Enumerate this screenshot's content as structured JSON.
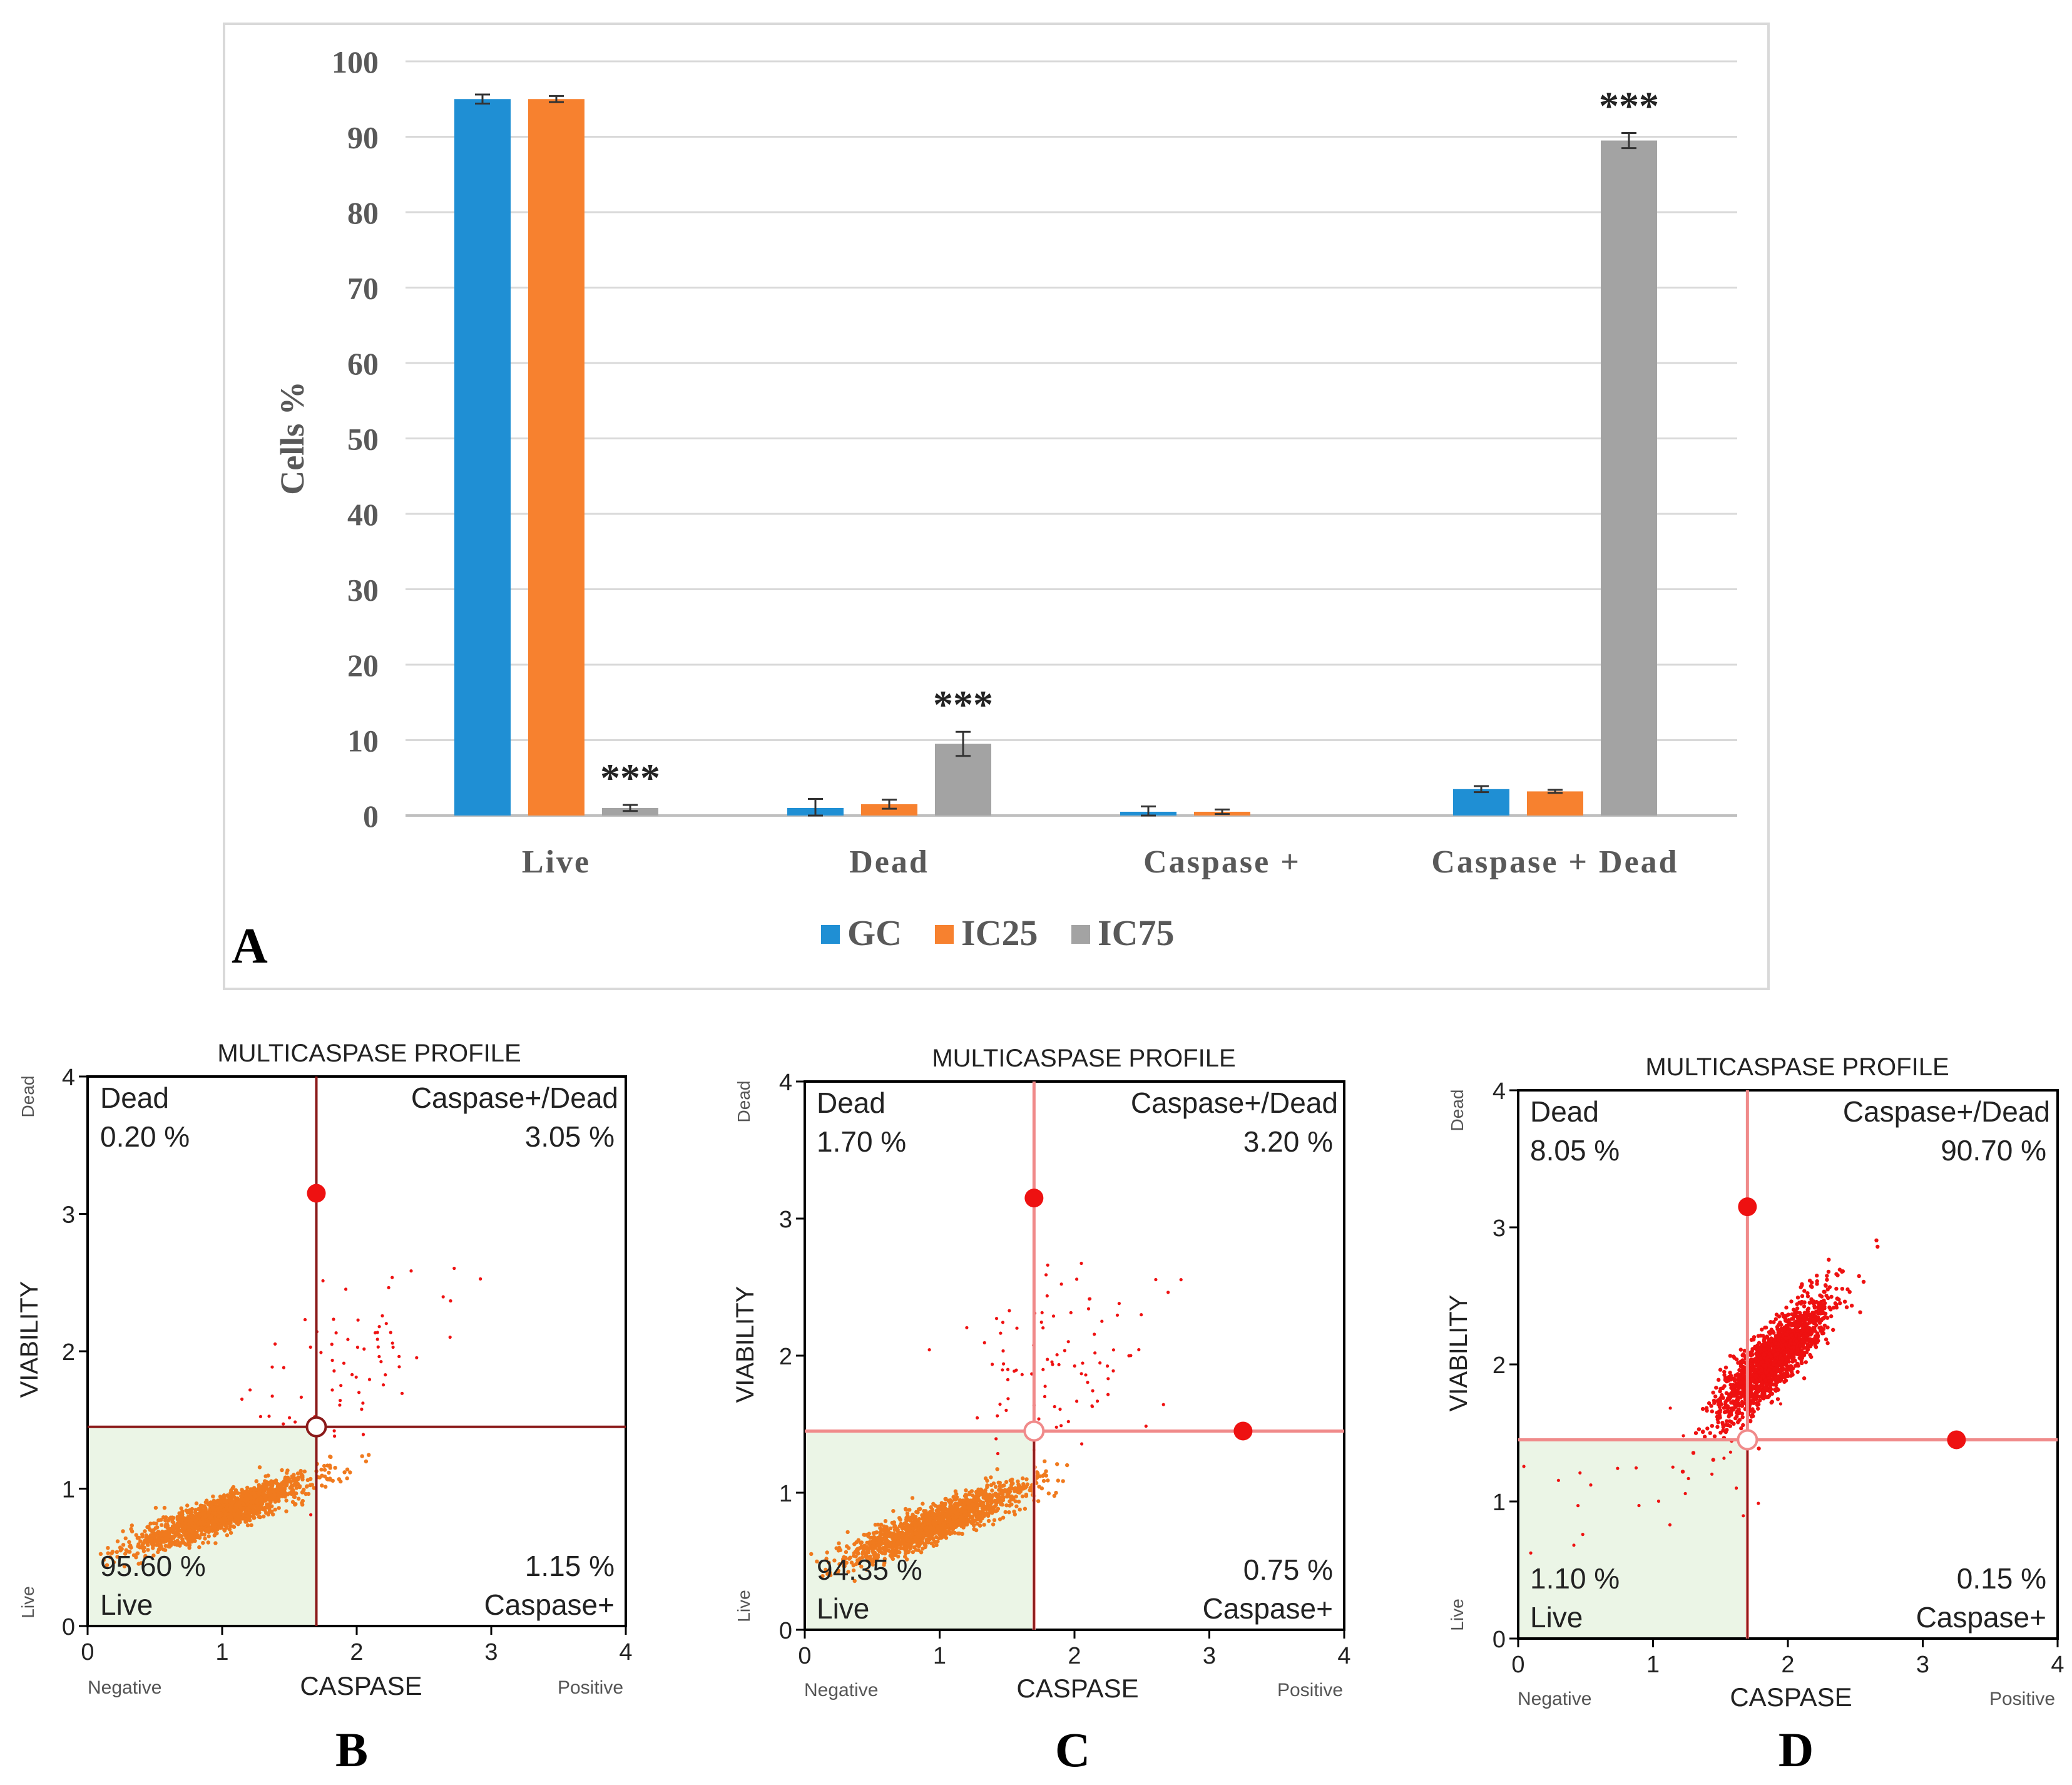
{
  "colors": {
    "gc": "#1f8fd4",
    "ic25": "#f7812f",
    "ic75": "#a3a3a3",
    "dot_orange": "#f07a1e",
    "dot_red": "#ee1111",
    "line_dark": "#8b1a1a",
    "line_pink": "#f08a8a",
    "live_fill": "#ebf5e6"
  },
  "panel_letters": {
    "a": "A",
    "b": "B",
    "c": "C",
    "d": "D"
  },
  "chart_data": [
    {
      "type": "bar",
      "panel": "A",
      "title": "",
      "xlabel": "",
      "ylabel": "Cells %",
      "ylim": [
        0,
        100
      ],
      "yticks": [
        "0",
        "10",
        "20",
        "30",
        "40",
        "50",
        "60",
        "70",
        "80",
        "90",
        "100"
      ],
      "categories": [
        "Live",
        "Dead",
        "Caspase +",
        "Caspase + Dead"
      ],
      "series": [
        {
          "name": "GC",
          "values": [
            95,
            1,
            0.5,
            3.5
          ],
          "errors": [
            0.6,
            1.2,
            0.7,
            0.4
          ]
        },
        {
          "name": "IC25",
          "values": [
            95,
            1.5,
            0.5,
            3.2
          ],
          "errors": [
            0.4,
            0.6,
            0.3,
            0.2
          ]
        },
        {
          "name": "IC75",
          "values": [
            1,
            9.5,
            0,
            89.5
          ],
          "errors": [
            0.4,
            1.6,
            0,
            1.0
          ]
        }
      ],
      "significance": [
        "***",
        "***",
        "",
        "***"
      ],
      "legend": [
        "GC",
        "IC25",
        "IC75"
      ],
      "legend_position": "bottom",
      "grid": true
    },
    {
      "type": "scatter",
      "panel": "B",
      "title": "MULTICASPASE PROFILE",
      "xlabel": "CASPASE",
      "ylabel": "VIABILITY",
      "x_end_labels": [
        "Negative",
        "Positive"
      ],
      "y_end_labels": [
        "Live",
        "Dead"
      ],
      "xlim": [
        0,
        4
      ],
      "ylim": [
        0,
        4
      ],
      "xticks": [
        "0",
        "1",
        "2",
        "3",
        "4"
      ],
      "yticks": [
        "0",
        "1",
        "2",
        "3",
        "4"
      ],
      "gate": [
        1.7,
        1.45
      ],
      "gate_color": "dark",
      "handles": [
        [
          1.7,
          3.15
        ]
      ],
      "quadrants": {
        "dead": {
          "name": "Dead",
          "pct": "0.20 %"
        },
        "caspase_dead": {
          "name": "Caspase+/Dead",
          "pct": "3.05 %"
        },
        "live": {
          "name": "Live",
          "pct": "95.60 %"
        },
        "caspase": {
          "name": "Caspase+",
          "pct": "1.15 %"
        }
      },
      "clusters": [
        {
          "cx": 1.0,
          "cy": 0.82,
          "sx": 0.32,
          "sy": 0.13,
          "rho": 0.88,
          "n": 1600,
          "color": "orange"
        },
        {
          "cx": 2.05,
          "cy": 1.95,
          "sx": 0.35,
          "sy": 0.32,
          "rho": 0.4,
          "n": 70,
          "color": "red"
        }
      ]
    },
    {
      "type": "scatter",
      "panel": "C",
      "title": "MULTICASPASE PROFILE",
      "xlabel": "CASPASE",
      "ylabel": "VIABILITY",
      "x_end_labels": [
        "Negative",
        "Positive"
      ],
      "y_end_labels": [
        "Live",
        "Dead"
      ],
      "xlim": [
        0,
        4
      ],
      "ylim": [
        0,
        4
      ],
      "xticks": [
        "0",
        "1",
        "2",
        "3",
        "4"
      ],
      "yticks": [
        "0",
        "1",
        "2",
        "3",
        "4"
      ],
      "gate": [
        1.7,
        1.45
      ],
      "gate_color": "pink",
      "handles": [
        [
          1.7,
          3.15
        ],
        [
          3.25,
          1.45
        ]
      ],
      "quadrants": {
        "dead": {
          "name": "Dead",
          "pct": "1.70 %"
        },
        "caspase_dead": {
          "name": "Caspase+/Dead",
          "pct": "3.20 %"
        },
        "live": {
          "name": "Live",
          "pct": "94.35 %"
        },
        "caspase": {
          "name": "Caspase+",
          "pct": "0.75 %"
        }
      },
      "clusters": [
        {
          "cx": 0.98,
          "cy": 0.78,
          "sx": 0.32,
          "sy": 0.14,
          "rho": 0.88,
          "n": 1500,
          "color": "orange"
        },
        {
          "cx": 1.85,
          "cy": 1.95,
          "sx": 0.35,
          "sy": 0.38,
          "rho": 0.3,
          "n": 90,
          "color": "red"
        }
      ]
    },
    {
      "type": "scatter",
      "panel": "D",
      "title": "MULTICASPASE PROFILE",
      "xlabel": "CASPASE",
      "ylabel": "VIABILITY",
      "x_end_labels": [
        "Negative",
        "Positive"
      ],
      "y_end_labels": [
        "Live",
        "Dead"
      ],
      "xlim": [
        0,
        4
      ],
      "ylim": [
        0,
        4
      ],
      "xticks": [
        "0",
        "1",
        "2",
        "3",
        "4"
      ],
      "yticks": [
        "0",
        "1",
        "2",
        "3",
        "4"
      ],
      "gate": [
        1.7,
        1.45
      ],
      "gate_color": "pink",
      "handles": [
        [
          1.7,
          3.15
        ],
        [
          3.25,
          1.45
        ]
      ],
      "quadrants": {
        "dead": {
          "name": "Dead",
          "pct": "8.05 %"
        },
        "caspase_dead": {
          "name": "Caspase+/Dead",
          "pct": "90.70 %"
        },
        "live": {
          "name": "Live",
          "pct": "1.10 %"
        },
        "caspase": {
          "name": "Caspase+",
          "pct": "0.15 %"
        }
      },
      "clusters": [
        {
          "cx": 1.9,
          "cy": 2.05,
          "sx": 0.2,
          "sy": 0.22,
          "rho": 0.85,
          "n": 1700,
          "color": "red"
        },
        {
          "cx": 1.1,
          "cy": 1.2,
          "sx": 0.5,
          "sy": 0.3,
          "rho": 0.5,
          "n": 25,
          "color": "red"
        }
      ]
    }
  ]
}
